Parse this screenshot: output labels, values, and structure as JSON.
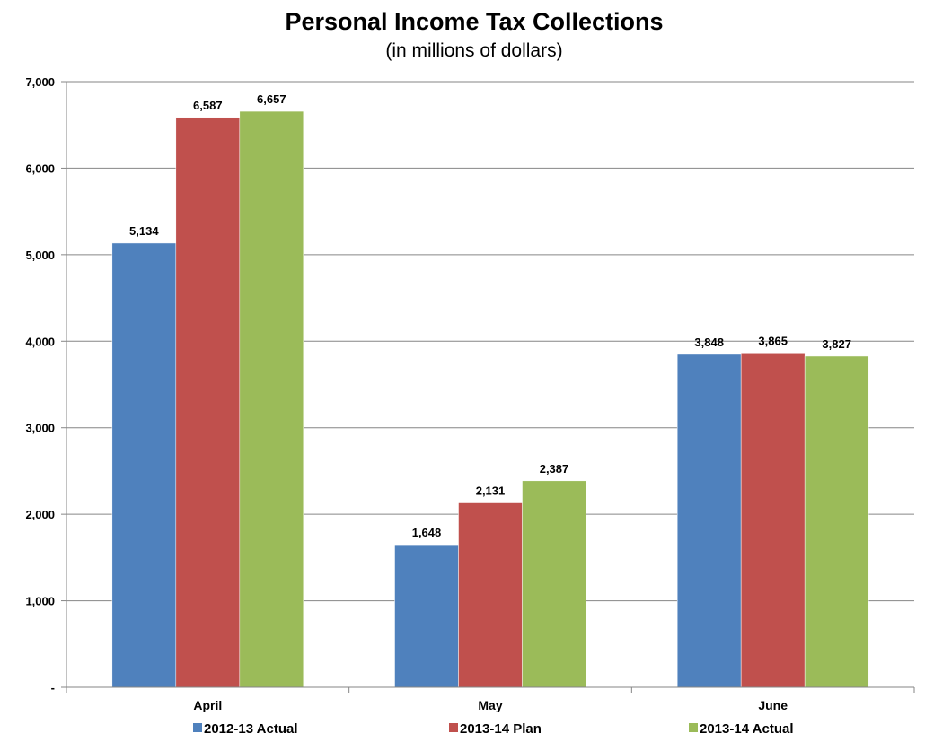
{
  "chart_data": {
    "type": "bar",
    "title": "Personal Income Tax Collections",
    "subtitle": "(in millions of dollars)",
    "xlabel": "",
    "ylabel": "",
    "ylim": [
      0,
      7000
    ],
    "y_ticks": [
      {
        "value": 0,
        "label": "-"
      },
      {
        "value": 1000,
        "label": "1,000"
      },
      {
        "value": 2000,
        "label": "2,000"
      },
      {
        "value": 3000,
        "label": "3,000"
      },
      {
        "value": 4000,
        "label": "4,000"
      },
      {
        "value": 5000,
        "label": "5,000"
      },
      {
        "value": 6000,
        "label": "6,000"
      },
      {
        "value": 7000,
        "label": "7,000"
      }
    ],
    "grid": true,
    "legend_position": "bottom",
    "categories": [
      "April",
      "May",
      "June"
    ],
    "series": [
      {
        "name": "2012-13 Actual",
        "color": "#4F81BD",
        "values": [
          5134,
          1648,
          3848
        ],
        "labels": [
          "5,134",
          "1,648",
          "3,848"
        ]
      },
      {
        "name": "2013-14 Plan",
        "color": "#C0504D",
        "values": [
          6587,
          2131,
          3865
        ],
        "labels": [
          "6,587",
          "2,131",
          "3,865"
        ]
      },
      {
        "name": "2013-14 Actual",
        "color": "#9BBB59",
        "values": [
          6657,
          2387,
          3827
        ],
        "labels": [
          "6,657",
          "2,387",
          "3,827"
        ]
      }
    ]
  }
}
